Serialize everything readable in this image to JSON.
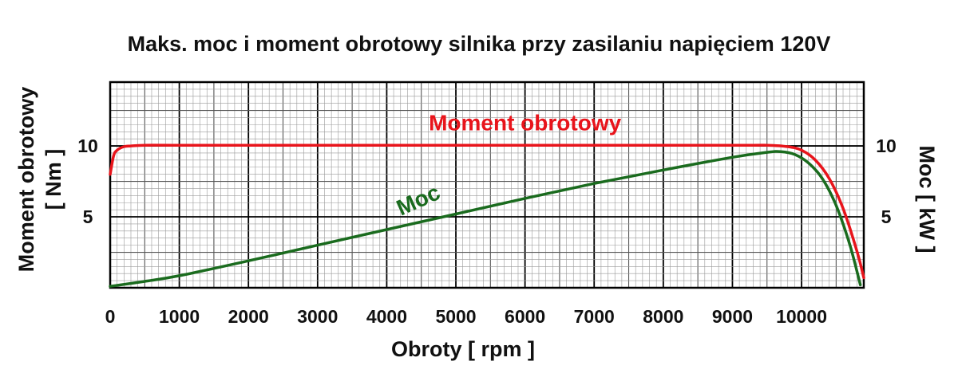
{
  "chart_data": {
    "type": "line",
    "title": "Maks. moc i moment obrotowy silnika przy zasilaniu napięciem 120V",
    "xlabel": "Obroty [ rpm ]",
    "ylabel_left_line1": "Moment obrotowy",
    "ylabel_left_line2": "[ Nm ]",
    "ylabel_right": "Moc [ kW ]",
    "xlim": [
      0,
      10900
    ],
    "ylim": [
      0,
      14.5
    ],
    "x_ticks": [
      0,
      1000,
      2000,
      3000,
      4000,
      5000,
      6000,
      7000,
      8000,
      9000,
      10000
    ],
    "x_tick_labels": [
      "0",
      "1000",
      "2000",
      "3000",
      "4000",
      "5000",
      "6000",
      "7000",
      "8000",
      "9000",
      "10000"
    ],
    "y_left_ticks": [
      5,
      10
    ],
    "y_left_tick_labels": [
      "5",
      "10"
    ],
    "y_right_ticks": [
      5,
      10
    ],
    "y_right_tick_labels": [
      "5",
      "10"
    ],
    "grid": true,
    "series": [
      {
        "name": "Moment obrotowy",
        "color": "#e8141b",
        "axis": "left",
        "x": [
          0,
          50,
          100,
          200,
          300,
          500,
          1000,
          3000,
          6000,
          9000,
          9500,
          9800,
          10000,
          10200,
          10400,
          10600,
          10800,
          10900
        ],
        "values": [
          8.0,
          9.3,
          9.7,
          9.95,
          10.0,
          10.05,
          10.05,
          10.05,
          10.05,
          10.05,
          10.05,
          9.95,
          9.7,
          9.0,
          7.7,
          5.6,
          2.6,
          0.7
        ]
      },
      {
        "name": "Moc",
        "color": "#1a6b1e",
        "axis": "right",
        "x": [
          0,
          500,
          1000,
          2000,
          3000,
          4000,
          5000,
          6000,
          7000,
          8000,
          9000,
          9500,
          9700,
          9900,
          10100,
          10300,
          10500,
          10700,
          10850
        ],
        "values": [
          0.1,
          0.45,
          0.85,
          1.9,
          3.0,
          4.1,
          5.2,
          6.3,
          7.35,
          8.3,
          9.2,
          9.55,
          9.6,
          9.4,
          8.8,
          7.7,
          5.8,
          3.0,
          0.2
        ]
      }
    ],
    "annotations": [
      {
        "text": "Moment obrotowy",
        "color": "#e8141b",
        "x": 6000,
        "y": 11.1
      },
      {
        "text": "Moc",
        "color": "#1a6b1e",
        "x": 4500,
        "y": 5.7,
        "rotate": -24
      }
    ]
  }
}
